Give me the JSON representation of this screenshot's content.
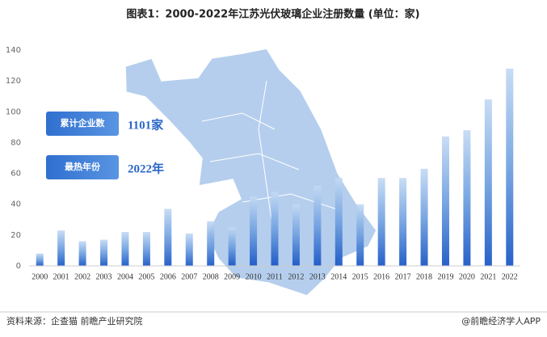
{
  "chart_data": {
    "type": "bar",
    "title": "图表1：2000-2022年江苏光伏玻璃企业注册数量 (单位：家)",
    "categories": [
      "2000",
      "2001",
      "2002",
      "2003",
      "2004",
      "2005",
      "2006",
      "2007",
      "2008",
      "2009",
      "2010",
      "2011",
      "2012",
      "2013",
      "2014",
      "2015",
      "2016",
      "2017",
      "2018",
      "2019",
      "2020",
      "2021",
      "2022"
    ],
    "values": [
      8,
      23,
      16,
      17,
      22,
      22,
      37,
      21,
      29,
      25,
      45,
      48,
      40,
      52,
      57,
      40,
      57,
      57,
      63,
      84,
      88,
      108,
      128
    ],
    "color": "#1c5fcc",
    "ylim": [
      0,
      140
    ],
    "yticks": [
      0,
      20,
      40,
      60,
      80,
      100,
      120,
      140
    ],
    "grid": false,
    "callouts": [
      {
        "label": "累计企业数",
        "value": "1101家"
      },
      {
        "label": "最热年份",
        "value": "2022年"
      }
    ],
    "source": "资料来源：企查猫 前瞻产业研究院",
    "credit": "@前瞻经济学人APP"
  }
}
